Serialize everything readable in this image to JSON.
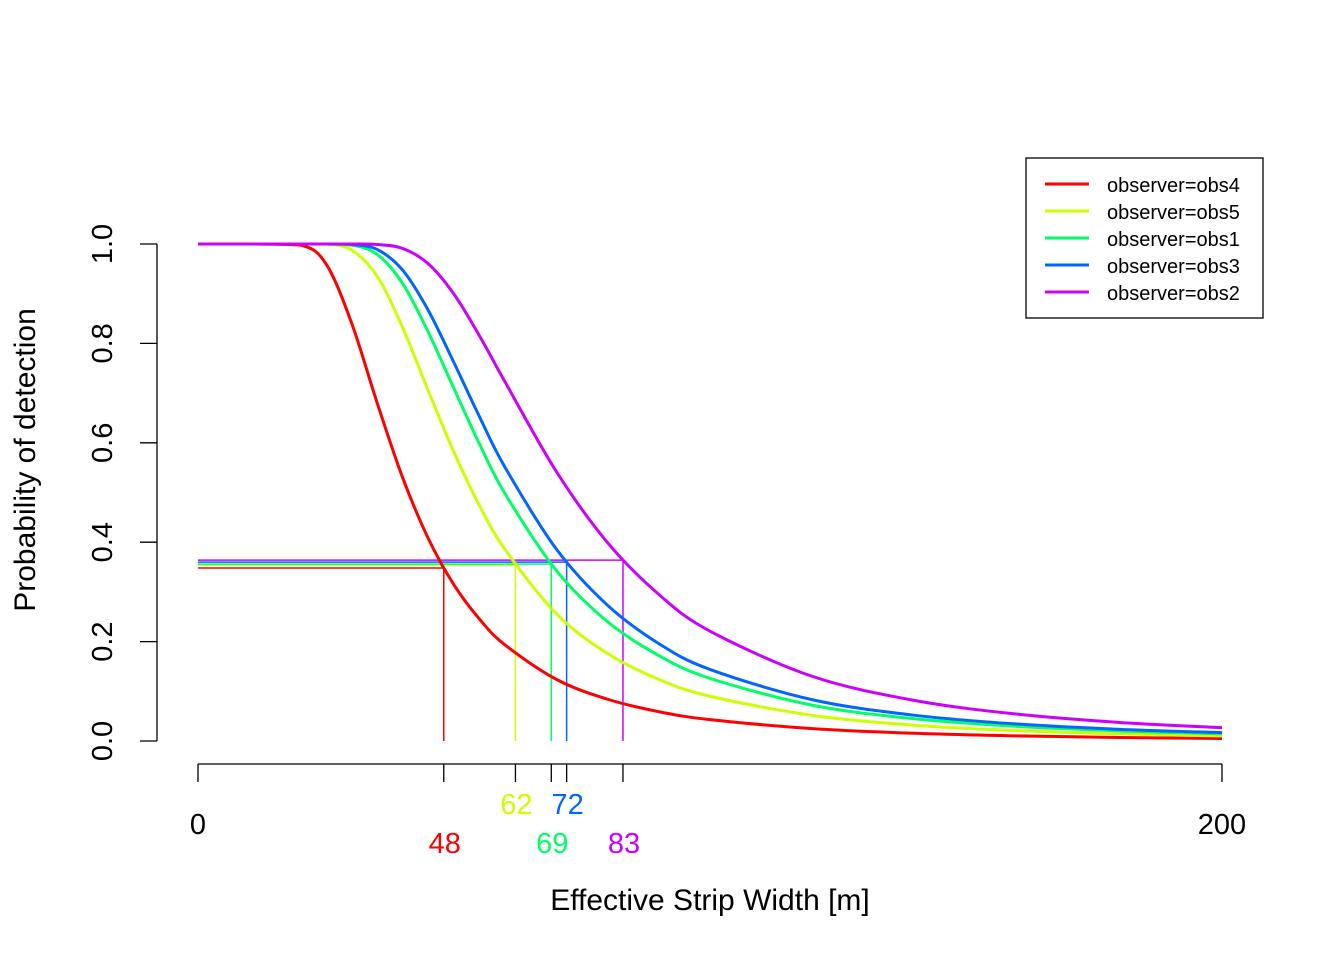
{
  "chart_data": {
    "type": "line",
    "title": "",
    "xlabel": "Effective Strip Width [m]",
    "ylabel": "Probability of detection",
    "xlim": [
      0,
      200
    ],
    "ylim": [
      0,
      1
    ],
    "x_tick_labels": [
      "0",
      "200"
    ],
    "y_tick_labels": [
      "0.0",
      "0.2",
      "0.4",
      "0.6",
      "0.8",
      "1.0"
    ],
    "y_ticks": [
      0,
      0.2,
      0.4,
      0.6,
      0.8,
      1.0
    ],
    "grid": false,
    "legend_position": "top-right",
    "x": [
      0,
      10,
      20,
      25,
      30,
      35,
      40,
      45,
      50,
      55,
      60,
      70,
      80,
      90,
      100,
      120,
      140,
      160,
      180,
      200
    ],
    "series": [
      {
        "name": "observer=obs4",
        "color": "#FF0000",
        "esw": 48,
        "esw_label": "48",
        "esw_p": 0.348,
        "values": [
          1,
          1,
          0.998,
          0.96,
          0.841,
          0.68,
          0.529,
          0.407,
          0.314,
          0.245,
          0.193,
          0.124,
          0.084,
          0.059,
          0.043,
          0.025,
          0.0155,
          0.0102,
          0.0071,
          0.0051
        ]
      },
      {
        "name": "observer=obs5",
        "color": "#CCFF00",
        "esw": 62,
        "esw_label": "62",
        "esw_p": 0.354,
        "values": [
          1,
          1,
          1,
          1.0,
          0.988,
          0.935,
          0.831,
          0.704,
          0.581,
          0.473,
          0.385,
          0.256,
          0.176,
          0.124,
          0.09,
          0.0515,
          0.0318,
          0.0208,
          0.0143,
          0.0103
        ]
      },
      {
        "name": "observer=obs1",
        "color": "#00FF66",
        "esw": 69,
        "esw_label": "69",
        "esw_p": 0.356,
        "values": [
          1,
          1,
          1,
          1.0,
          0.998,
          0.979,
          0.92,
          0.822,
          0.709,
          0.597,
          0.497,
          0.343,
          0.24,
          0.172,
          0.126,
          0.072,
          0.0447,
          0.0294,
          0.0203,
          0.0145
        ]
      },
      {
        "name": "observer=obs3",
        "color": "#0066FF",
        "esw": 72,
        "esw_label": "72",
        "esw_p": 0.36,
        "values": [
          1,
          1,
          1,
          1.0,
          0.999,
          0.989,
          0.947,
          0.866,
          0.761,
          0.652,
          0.55,
          0.386,
          0.273,
          0.196,
          0.144,
          0.083,
          0.0517,
          0.0341,
          0.0235,
          0.0169
        ]
      },
      {
        "name": "observer=obs2",
        "color": "#CC00FF",
        "esw": 83,
        "esw_label": "83",
        "esw_p": 0.364,
        "values": [
          1,
          1,
          1,
          1.0,
          1.0,
          0.999,
          0.991,
          0.96,
          0.899,
          0.815,
          0.722,
          0.542,
          0.399,
          0.295,
          0.221,
          0.13,
          0.0815,
          0.054,
          0.0373,
          0.0268
        ]
      }
    ]
  }
}
